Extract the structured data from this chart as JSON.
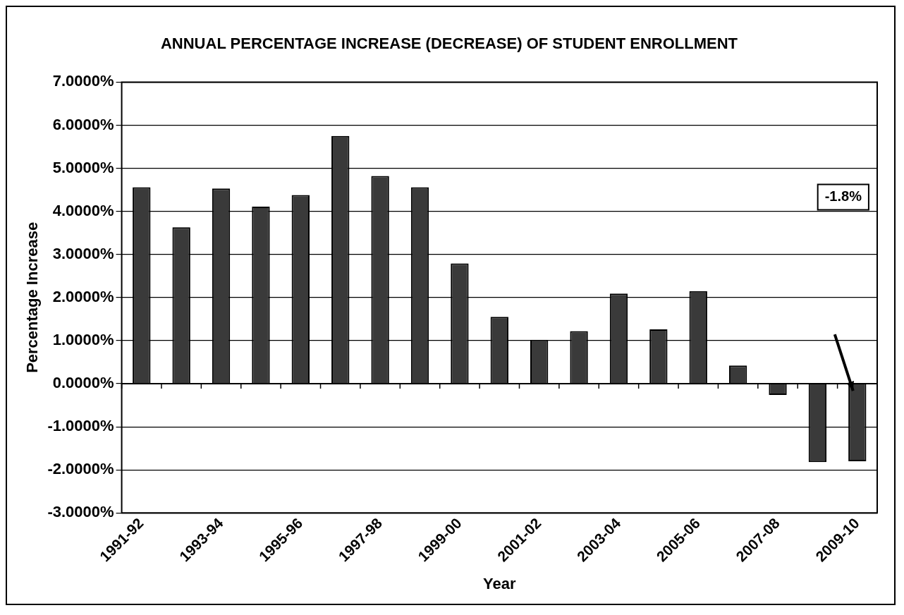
{
  "chart_data": {
    "type": "bar",
    "title": "ANNUAL PERCENTAGE INCREASE (DECREASE) OF STUDENT ENROLLMENT",
    "xlabel": "Year",
    "ylabel": "Percentage Increase",
    "categories": [
      "1991-92",
      null,
      "1993-94",
      null,
      "1995-96",
      null,
      "1997-98",
      null,
      "1999-00",
      null,
      "2001-02",
      null,
      "2003-04",
      null,
      "2005-06",
      null,
      "2007-08",
      null,
      "2009-10"
    ],
    "values": [
      4.56,
      3.63,
      4.53,
      4.11,
      4.38,
      5.75,
      4.82,
      4.56,
      2.79,
      1.55,
      1.02,
      1.22,
      2.09,
      1.26,
      2.15,
      0.42,
      -0.26,
      -1.82,
      -1.8
    ],
    "color": "#3a3a3a",
    "ylim": [
      -3,
      7
    ],
    "yticks": [
      {
        "value": -3,
        "label": "-3.0000%"
      },
      {
        "value": -2,
        "label": "-2.0000%"
      },
      {
        "value": -1,
        "label": "-1.0000%"
      },
      {
        "value": 0,
        "label": "0.0000%"
      },
      {
        "value": 1,
        "label": "1.0000%"
      },
      {
        "value": 2,
        "label": "2.0000%"
      },
      {
        "value": 3,
        "label": "3.0000%"
      },
      {
        "value": 4,
        "label": "4.0000%"
      },
      {
        "value": 5,
        "label": "5.0000%"
      },
      {
        "value": 6,
        "label": "6.0000%"
      },
      {
        "value": 7,
        "label": "7.0000%"
      }
    ],
    "grid": "y",
    "annotations": [
      "-1.8%"
    ]
  }
}
